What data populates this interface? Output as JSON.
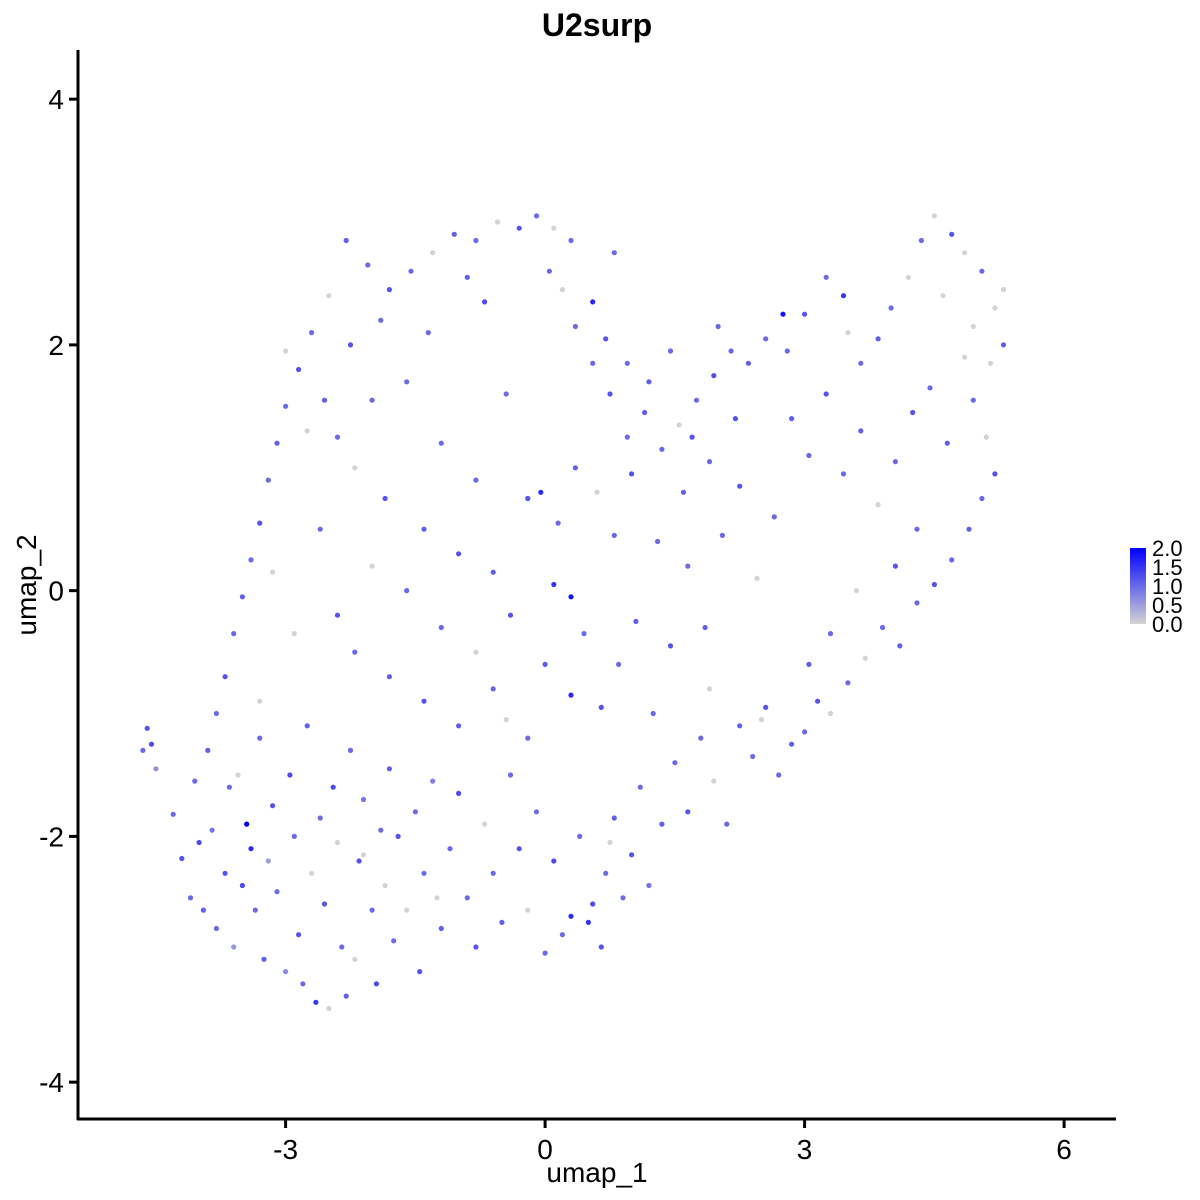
{
  "chart_data": {
    "type": "scatter",
    "title": "U2surp",
    "xlabel": "umap_1",
    "ylabel": "umap_2",
    "xlim": [
      -5.4,
      6.6
    ],
    "ylim": [
      -4.3,
      4.4
    ],
    "xticks": [
      -3,
      0,
      3,
      6
    ],
    "xtick_labels": [
      "-3",
      "0",
      "3",
      "6"
    ],
    "yticks": [
      -4,
      -2,
      0,
      2,
      4
    ],
    "ytick_labels": [
      "-4",
      "-2",
      "0",
      "2",
      "4"
    ],
    "grid": false,
    "color_scale": {
      "low": "#d3d3d3",
      "high": "#0000ff",
      "range": [
        0.0,
        2.0
      ],
      "breaks": [
        2.0,
        1.5,
        1.0,
        0.5,
        0.0
      ],
      "break_labels": [
        "2.0",
        "1.5",
        "1.0",
        "0.5",
        "0.0"
      ],
      "legend_position": "right"
    },
    "points": [
      [
        -4.65,
        -1.3,
        1.0
      ],
      [
        -4.6,
        -1.12,
        1.2
      ],
      [
        -4.55,
        -1.25,
        1.3
      ],
      [
        -4.5,
        -1.45,
        0.6
      ],
      [
        -4.3,
        -1.82,
        1.0
      ],
      [
        -4.2,
        -2.18,
        1.2
      ],
      [
        -4.1,
        -2.5,
        1.0
      ],
      [
        -4.0,
        -2.05,
        1.3
      ],
      [
        -3.95,
        -2.6,
        1.1
      ],
      [
        -3.85,
        -1.95,
        0.9
      ],
      [
        -3.8,
        -2.75,
        1.0
      ],
      [
        -3.7,
        -2.3,
        1.2
      ],
      [
        -3.65,
        -1.6,
        1.0
      ],
      [
        -3.6,
        -2.9,
        0.6
      ],
      [
        -3.5,
        -2.4,
        1.3
      ],
      [
        -3.45,
        -1.9,
        2.0
      ],
      [
        -3.4,
        -2.1,
        1.6
      ],
      [
        -3.35,
        -2.6,
        1.0
      ],
      [
        -3.3,
        -1.2,
        1.0
      ],
      [
        -3.25,
        -3.0,
        1.1
      ],
      [
        -3.2,
        -2.2,
        0.5
      ],
      [
        -3.15,
        -1.75,
        1.2
      ],
      [
        -3.1,
        -2.45,
        1.0
      ],
      [
        -3.0,
        -3.1,
        0.7
      ],
      [
        -2.95,
        -1.5,
        1.3
      ],
      [
        -2.9,
        -2.0,
        1.0
      ],
      [
        -2.85,
        -2.8,
        1.2
      ],
      [
        -2.8,
        -3.2,
        1.0
      ],
      [
        -2.75,
        -1.1,
        1.1
      ],
      [
        -2.7,
        -2.3,
        0.0
      ],
      [
        -2.65,
        -3.35,
        1.5
      ],
      [
        -2.6,
        -1.85,
        1.0
      ],
      [
        -2.55,
        -2.55,
        1.2
      ],
      [
        -2.5,
        -3.4,
        0.0
      ],
      [
        -2.45,
        -1.6,
        1.3
      ],
      [
        -2.4,
        -2.05,
        0.0
      ],
      [
        -2.35,
        -2.9,
        1.0
      ],
      [
        -2.3,
        -3.3,
        1.1
      ],
      [
        -2.25,
        -1.3,
        1.0
      ],
      [
        -2.2,
        -3.0,
        0.0
      ],
      [
        -2.15,
        -2.2,
        1.2
      ],
      [
        -2.1,
        -1.7,
        0.9
      ],
      [
        -2.0,
        -2.6,
        1.0
      ],
      [
        -1.95,
        -3.2,
        1.3
      ],
      [
        -1.9,
        -1.95,
        1.0
      ],
      [
        -1.85,
        -2.4,
        0.0
      ],
      [
        -1.8,
        -1.45,
        1.1
      ],
      [
        -1.75,
        -2.85,
        1.0
      ],
      [
        -1.7,
        -2.0,
        1.2
      ],
      [
        -1.6,
        -2.6,
        0.0
      ],
      [
        -1.5,
        -1.8,
        1.0
      ],
      [
        -1.45,
        -3.1,
        1.2
      ],
      [
        -1.4,
        -2.3,
        1.0
      ],
      [
        -1.3,
        -1.55,
        0.8
      ],
      [
        -1.2,
        -2.75,
        1.1
      ],
      [
        -1.1,
        -2.1,
        1.0
      ],
      [
        -1.0,
        -1.65,
        1.3
      ],
      [
        -0.9,
        -2.5,
        1.0
      ],
      [
        -0.8,
        -2.9,
        1.2
      ],
      [
        -0.7,
        -1.9,
        0.0
      ],
      [
        -0.6,
        -2.3,
        1.0
      ],
      [
        -0.5,
        -2.7,
        1.1
      ],
      [
        -0.4,
        -1.5,
        1.0
      ],
      [
        -0.3,
        -2.1,
        1.2
      ],
      [
        -0.2,
        -2.6,
        0.0
      ],
      [
        -0.1,
        -1.8,
        1.0
      ],
      [
        0.0,
        -2.95,
        1.0
      ],
      [
        0.1,
        -2.2,
        1.3
      ],
      [
        0.2,
        -2.8,
        1.0
      ],
      [
        0.3,
        -2.65,
        1.6
      ],
      [
        0.4,
        -2.0,
        1.0
      ],
      [
        0.5,
        -2.7,
        1.5
      ],
      [
        0.55,
        -2.55,
        1.3
      ],
      [
        0.65,
        -2.9,
        1.2
      ],
      [
        0.7,
        -2.3,
        1.0
      ],
      [
        0.8,
        -1.85,
        1.1
      ],
      [
        0.9,
        -2.5,
        1.0
      ],
      [
        1.0,
        -2.15,
        1.2
      ],
      [
        1.1,
        -1.6,
        1.0
      ],
      [
        1.2,
        -2.4,
        0.9
      ],
      [
        1.35,
        -1.9,
        1.1
      ],
      [
        1.5,
        -1.4,
        1.0
      ],
      [
        1.65,
        -1.8,
        1.2
      ],
      [
        1.8,
        -1.2,
        1.0
      ],
      [
        1.95,
        -1.55,
        0.0
      ],
      [
        2.1,
        -1.9,
        1.0
      ],
      [
        2.25,
        -1.1,
        1.1
      ],
      [
        2.4,
        -1.35,
        1.0
      ],
      [
        2.55,
        -0.95,
        1.2
      ],
      [
        2.7,
        -1.5,
        1.0
      ],
      [
        2.85,
        -1.25,
        1.1
      ],
      [
        3.0,
        -1.15,
        1.0
      ],
      [
        3.15,
        -0.9,
        1.2
      ],
      [
        3.3,
        -1.0,
        0.0
      ],
      [
        3.5,
        -0.75,
        1.0
      ],
      [
        3.7,
        -0.55,
        0.0
      ],
      [
        3.9,
        -0.3,
        1.0
      ],
      [
        4.1,
        -0.45,
        1.1
      ],
      [
        4.3,
        -0.1,
        1.0
      ],
      [
        4.5,
        0.05,
        1.2
      ],
      [
        4.7,
        0.25,
        1.0
      ],
      [
        4.9,
        0.5,
        1.1
      ],
      [
        5.05,
        0.75,
        1.0
      ],
      [
        5.2,
        0.95,
        1.2
      ],
      [
        5.1,
        1.25,
        0.0
      ],
      [
        4.95,
        1.55,
        1.0
      ],
      [
        5.15,
        1.85,
        0.0
      ],
      [
        5.3,
        2.0,
        1.1
      ],
      [
        5.2,
        2.3,
        0.0
      ],
      [
        5.3,
        2.45,
        0.0
      ],
      [
        5.05,
        2.6,
        1.0
      ],
      [
        4.85,
        2.75,
        0.0
      ],
      [
        4.7,
        2.9,
        1.2
      ],
      [
        4.5,
        3.05,
        0.0
      ],
      [
        4.35,
        2.85,
        1.0
      ],
      [
        4.2,
        2.55,
        0.0
      ],
      [
        4.0,
        2.3,
        1.0
      ],
      [
        3.85,
        2.05,
        1.1
      ],
      [
        3.65,
        1.85,
        1.0
      ],
      [
        3.45,
        2.4,
        1.5
      ],
      [
        3.25,
        2.55,
        1.0
      ],
      [
        3.0,
        2.25,
        1.2
      ],
      [
        2.75,
        2.25,
        1.8
      ],
      [
        2.55,
        2.05,
        1.0
      ],
      [
        2.35,
        1.85,
        1.1
      ],
      [
        2.15,
        1.95,
        1.0
      ],
      [
        1.95,
        1.75,
        1.2
      ],
      [
        1.75,
        1.55,
        1.0
      ],
      [
        1.55,
        1.35,
        0.0
      ],
      [
        1.35,
        1.15,
        1.0
      ],
      [
        1.15,
        1.45,
        1.1
      ],
      [
        0.95,
        1.25,
        1.0
      ],
      [
        0.75,
        1.6,
        1.2
      ],
      [
        0.55,
        1.85,
        1.0
      ],
      [
        0.35,
        2.15,
        1.0
      ],
      [
        0.2,
        2.45,
        0.0
      ],
      [
        0.55,
        2.35,
        1.6
      ],
      [
        0.8,
        2.75,
        1.0
      ],
      [
        0.3,
        2.85,
        1.0
      ],
      [
        0.1,
        2.95,
        0.0
      ],
      [
        -0.1,
        3.05,
        1.0
      ],
      [
        -0.3,
        2.95,
        1.2
      ],
      [
        -0.55,
        3.0,
        0.0
      ],
      [
        -0.8,
        2.85,
        1.0
      ],
      [
        -1.05,
        2.9,
        1.1
      ],
      [
        -1.3,
        2.75,
        0.0
      ],
      [
        -1.55,
        2.6,
        1.0
      ],
      [
        -1.8,
        2.45,
        1.2
      ],
      [
        -2.05,
        2.65,
        1.0
      ],
      [
        -2.3,
        2.85,
        1.1
      ],
      [
        -2.5,
        2.4,
        0.0
      ],
      [
        -2.7,
        2.1,
        1.0
      ],
      [
        -2.85,
        1.8,
        1.2
      ],
      [
        -3.0,
        1.5,
        1.0
      ],
      [
        -3.1,
        1.2,
        1.1
      ],
      [
        -3.2,
        0.9,
        1.0
      ],
      [
        -3.3,
        0.55,
        1.2
      ],
      [
        -3.4,
        0.25,
        1.0
      ],
      [
        -3.5,
        -0.05,
        1.1
      ],
      [
        -3.6,
        -0.35,
        1.0
      ],
      [
        -3.7,
        -0.7,
        1.2
      ],
      [
        -3.8,
        -1.0,
        1.0
      ],
      [
        -3.9,
        -1.3,
        1.1
      ],
      [
        -4.05,
        -1.55,
        1.0
      ],
      [
        -2.55,
        1.55,
        1.1
      ],
      [
        -2.4,
        1.25,
        1.0
      ],
      [
        -2.2,
        1.0,
        0.0
      ],
      [
        -2.0,
        1.55,
        1.0
      ],
      [
        -1.85,
        0.75,
        1.2
      ],
      [
        -1.6,
        1.7,
        1.0
      ],
      [
        -1.4,
        0.5,
        1.1
      ],
      [
        -1.2,
        1.2,
        1.0
      ],
      [
        -1.0,
        0.3,
        1.2
      ],
      [
        -0.8,
        0.9,
        1.0
      ],
      [
        -0.6,
        0.15,
        1.1
      ],
      [
        -0.45,
        1.6,
        1.0
      ],
      [
        -0.2,
        0.75,
        1.2
      ],
      [
        -0.05,
        0.8,
        1.6
      ],
      [
        0.15,
        0.55,
        1.0
      ],
      [
        0.35,
        1.0,
        1.1
      ],
      [
        -2.6,
        0.5,
        1.0
      ],
      [
        -2.4,
        -0.2,
        1.2
      ],
      [
        -2.2,
        -0.5,
        1.0
      ],
      [
        -2.0,
        0.2,
        0.0
      ],
      [
        -1.8,
        -0.7,
        1.1
      ],
      [
        -1.6,
        0.0,
        1.0
      ],
      [
        -1.4,
        -0.9,
        1.2
      ],
      [
        -1.2,
        -0.3,
        1.0
      ],
      [
        -1.0,
        -1.1,
        1.1
      ],
      [
        -0.8,
        -0.5,
        0.0
      ],
      [
        -0.6,
        -0.8,
        1.0
      ],
      [
        -0.4,
        -0.2,
        1.2
      ],
      [
        -0.2,
        -1.2,
        1.0
      ],
      [
        0.0,
        -0.6,
        1.1
      ],
      [
        0.3,
        -0.05,
        1.8
      ],
      [
        0.1,
        0.05,
        1.5
      ],
      [
        0.45,
        -0.35,
        1.0
      ],
      [
        0.65,
        -0.95,
        1.2
      ],
      [
        0.3,
        -0.85,
        1.6
      ],
      [
        0.85,
        -0.6,
        1.0
      ],
      [
        1.05,
        -0.25,
        1.1
      ],
      [
        1.25,
        -1.0,
        1.0
      ],
      [
        1.45,
        -0.45,
        1.2
      ],
      [
        1.65,
        0.2,
        1.0
      ],
      [
        1.85,
        -0.3,
        1.1
      ],
      [
        2.05,
        0.45,
        1.0
      ],
      [
        2.25,
        0.85,
        1.2
      ],
      [
        2.45,
        0.1,
        0.0
      ],
      [
        2.65,
        0.6,
        1.0
      ],
      [
        2.85,
        1.4,
        1.1
      ],
      [
        3.05,
        1.1,
        1.0
      ],
      [
        3.25,
        1.6,
        1.2
      ],
      [
        3.45,
        0.95,
        1.0
      ],
      [
        3.65,
        1.3,
        1.1
      ],
      [
        3.85,
        0.7,
        0.0
      ],
      [
        4.05,
        1.05,
        1.0
      ],
      [
        4.25,
        1.45,
        1.2
      ],
      [
        4.45,
        1.65,
        1.0
      ],
      [
        4.65,
        1.2,
        1.1
      ],
      [
        4.85,
        1.9,
        0.0
      ],
      [
        4.3,
        0.5,
        1.0
      ],
      [
        4.05,
        0.2,
        1.2
      ],
      [
        3.6,
        0.0,
        0.0
      ],
      [
        3.3,
        -0.35,
        1.0
      ],
      [
        3.05,
        -0.6,
        1.1
      ],
      [
        2.8,
        1.95,
        1.0
      ],
      [
        2.2,
        1.4,
        1.2
      ],
      [
        1.9,
        1.05,
        1.0
      ],
      [
        1.6,
        0.8,
        1.1
      ],
      [
        1.3,
        0.4,
        1.0
      ],
      [
        1.0,
        0.95,
        1.2
      ],
      [
        0.8,
        0.45,
        1.0
      ],
      [
        0.6,
        0.8,
        0.0
      ],
      [
        -3.0,
        1.95,
        0.0
      ],
      [
        -2.75,
        1.3,
        0.0
      ],
      [
        -3.15,
        0.15,
        0.0
      ],
      [
        -2.9,
        -0.35,
        0.0
      ],
      [
        -3.3,
        -0.9,
        0.0
      ],
      [
        -3.55,
        -1.5,
        0.0
      ],
      [
        -2.1,
        -2.15,
        0.0
      ],
      [
        -1.25,
        -2.5,
        0.0
      ],
      [
        -0.45,
        -1.05,
        0.0
      ],
      [
        0.75,
        -2.05,
        0.0
      ],
      [
        1.9,
        -0.8,
        0.0
      ],
      [
        2.5,
        -1.05,
        0.0
      ],
      [
        3.5,
        2.1,
        0.0
      ],
      [
        4.6,
        2.4,
        0.0
      ],
      [
        4.95,
        2.15,
        0.0
      ],
      [
        -0.7,
        2.35,
        1.3
      ],
      [
        -1.9,
        2.2,
        1.0
      ],
      [
        -2.25,
        2.0,
        1.2
      ],
      [
        -1.35,
        2.1,
        1.0
      ],
      [
        -0.9,
        2.55,
        1.1
      ],
      [
        0.05,
        2.6,
        1.0
      ],
      [
        0.7,
        2.05,
        1.2
      ],
      [
        0.95,
        1.85,
        1.0
      ],
      [
        1.2,
        1.7,
        1.1
      ],
      [
        1.45,
        1.95,
        1.0
      ],
      [
        1.7,
        1.25,
        1.2
      ],
      [
        2.0,
        2.15,
        1.0
      ]
    ]
  }
}
